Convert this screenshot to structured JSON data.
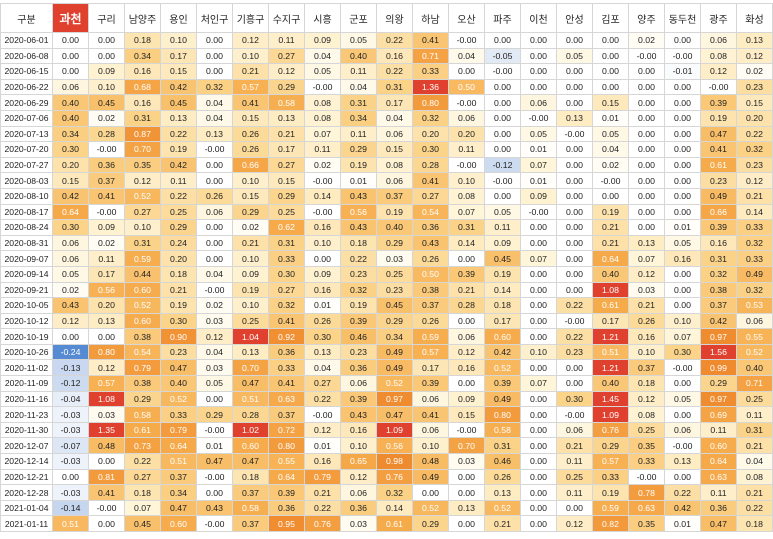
{
  "table": {
    "highlighted_column_index": 0
  },
  "colors": {
    "header_highlight": "#E0412F",
    "zero": "#FFFFFF",
    "low": "#FFF3D4",
    "mid": "#FBD48A",
    "upper": "#F6AC4C",
    "high": "#EF8A2E",
    "max": "#E0412F",
    "neg_light": "#E2EAF6",
    "neg_mid": "#C3D4EE",
    "neg_strong": "#4A82D0",
    "grid": "#D6D6D6"
  },
  "chart_data": {
    "type": "heatmap",
    "row_header_label": "구분",
    "columns": [
      "과천",
      "구리",
      "남양주",
      "용인",
      "처인구",
      "기흥구",
      "수지구",
      "시흥",
      "군포",
      "의왕",
      "하남",
      "오산",
      "파주",
      "이천",
      "안성",
      "김포",
      "양주",
      "동두천",
      "광주",
      "화성"
    ],
    "rows": [
      {
        "date": "2020-06-01",
        "values": [
          "0.00",
          "0.00",
          "0.18",
          "0.10",
          "0.00",
          "0.12",
          "0.11",
          "0.09",
          "0.05",
          "0.22",
          "0.41",
          "-0.00",
          "0.00",
          "0.00",
          "0.00",
          "0.00",
          "0.02",
          "0.00",
          "0.06",
          "0.13"
        ]
      },
      {
        "date": "2020-06-08",
        "values": [
          "0.00",
          "0.00",
          "0.34",
          "0.17",
          "0.00",
          "0.10",
          "0.27",
          "0.04",
          "0.40",
          "0.16",
          "0.71",
          "0.04",
          "-0.05",
          "0.00",
          "0.05",
          "0.00",
          "-0.00",
          "-0.00",
          "0.08",
          "0.12"
        ]
      },
      {
        "date": "2020-06-15",
        "values": [
          "0.00",
          "0.09",
          "0.16",
          "0.15",
          "0.00",
          "0.21",
          "0.12",
          "0.05",
          "0.11",
          "0.22",
          "0.33",
          "0.00",
          "-0.00",
          "0.00",
          "0.00",
          "0.00",
          "0.00",
          "-0.01",
          "0.12",
          "0.02"
        ]
      },
      {
        "date": "2020-06-22",
        "values": [
          "0.06",
          "0.10",
          "0.68",
          "0.42",
          "0.32",
          "0.57",
          "0.29",
          "-0.00",
          "0.04",
          "0.31",
          "1.36",
          "0.50",
          "0.00",
          "0.00",
          "0.00",
          "0.00",
          "0.00",
          "0.00",
          "-0.00",
          "0.23"
        ]
      },
      {
        "date": "2020-06-29",
        "values": [
          "0.40",
          "0.45",
          "0.16",
          "0.45",
          "0.04",
          "0.41",
          "0.58",
          "0.08",
          "0.31",
          "0.17",
          "0.80",
          "-0.00",
          "0.00",
          "0.06",
          "0.00",
          "0.15",
          "0.00",
          "0.00",
          "0.39",
          "0.15"
        ]
      },
      {
        "date": "2020-07-06",
        "values": [
          "0.40",
          "0.02",
          "0.31",
          "0.13",
          "0.04",
          "0.15",
          "0.13",
          "0.08",
          "0.34",
          "0.04",
          "0.32",
          "0.06",
          "0.00",
          "-0.00",
          "0.13",
          "0.01",
          "0.00",
          "0.00",
          "0.19",
          "0.20"
        ]
      },
      {
        "date": "2020-07-13",
        "values": [
          "0.34",
          "0.28",
          "0.87",
          "0.22",
          "0.13",
          "0.26",
          "0.21",
          "0.07",
          "0.11",
          "0.06",
          "0.20",
          "0.20",
          "0.00",
          "0.05",
          "-0.00",
          "0.05",
          "0.00",
          "0.00",
          "0.47",
          "0.22"
        ]
      },
      {
        "date": "2020-07-20",
        "values": [
          "0.30",
          "-0.00",
          "0.70",
          "0.19",
          "-0.00",
          "0.26",
          "0.17",
          "0.11",
          "0.29",
          "0.15",
          "0.30",
          "0.11",
          "0.00",
          "0.01",
          "0.00",
          "0.04",
          "0.00",
          "0.00",
          "0.41",
          "0.32"
        ]
      },
      {
        "date": "2020-07-27",
        "values": [
          "0.20",
          "0.36",
          "0.35",
          "0.42",
          "0.00",
          "0.66",
          "0.27",
          "0.02",
          "0.19",
          "0.08",
          "0.28",
          "-0.00",
          "-0.12",
          "0.07",
          "0.00",
          "0.02",
          "0.00",
          "0.00",
          "0.61",
          "0.23"
        ]
      },
      {
        "date": "2020-08-03",
        "values": [
          "0.15",
          "0.37",
          "0.12",
          "0.11",
          "0.00",
          "0.10",
          "0.15",
          "-0.00",
          "0.01",
          "0.06",
          "0.41",
          "0.10",
          "-0.00",
          "0.01",
          "0.00",
          "-0.00",
          "0.00",
          "0.00",
          "0.23",
          "0.12"
        ]
      },
      {
        "date": "2020-08-10",
        "values": [
          "0.42",
          "0.41",
          "0.52",
          "0.22",
          "0.26",
          "0.15",
          "0.29",
          "0.14",
          "0.43",
          "0.37",
          "0.27",
          "0.08",
          "0.00",
          "0.09",
          "0.00",
          "0.00",
          "0.00",
          "0.00",
          "0.49",
          "0.21"
        ]
      },
      {
        "date": "2020-08-17",
        "values": [
          "0.64",
          "-0.00",
          "0.27",
          "0.25",
          "0.06",
          "0.29",
          "0.25",
          "-0.00",
          "0.56",
          "0.19",
          "0.54",
          "0.07",
          "0.05",
          "-0.00",
          "0.00",
          "0.19",
          "0.00",
          "0.00",
          "0.66",
          "0.14"
        ]
      },
      {
        "date": "2020-08-24",
        "values": [
          "0.30",
          "0.09",
          "0.10",
          "0.29",
          "0.00",
          "0.02",
          "0.62",
          "0.16",
          "0.43",
          "0.40",
          "0.36",
          "0.31",
          "0.11",
          "0.00",
          "0.00",
          "0.21",
          "0.00",
          "0.01",
          "0.39",
          "0.33"
        ]
      },
      {
        "date": "2020-08-31",
        "values": [
          "0.06",
          "0.02",
          "0.31",
          "0.24",
          "0.00",
          "0.21",
          "0.31",
          "0.10",
          "0.18",
          "0.29",
          "0.43",
          "0.14",
          "0.09",
          "0.00",
          "0.00",
          "0.21",
          "0.13",
          "0.05",
          "0.16",
          "0.32"
        ]
      },
      {
        "date": "2020-09-07",
        "values": [
          "0.06",
          "0.11",
          "0.59",
          "0.20",
          "0.00",
          "0.10",
          "0.33",
          "0.00",
          "0.22",
          "0.03",
          "0.26",
          "0.00",
          "0.45",
          "0.07",
          "0.00",
          "0.64",
          "0.07",
          "0.16",
          "0.31",
          "0.33"
        ]
      },
      {
        "date": "2020-09-14",
        "values": [
          "0.05",
          "0.17",
          "0.44",
          "0.18",
          "0.04",
          "0.09",
          "0.30",
          "0.09",
          "0.23",
          "0.25",
          "0.50",
          "0.39",
          "0.19",
          "0.00",
          "0.00",
          "0.40",
          "0.12",
          "0.00",
          "0.32",
          "0.49"
        ]
      },
      {
        "date": "2020-09-21",
        "values": [
          "0.02",
          "0.56",
          "0.60",
          "0.21",
          "-0.00",
          "0.19",
          "0.27",
          "0.16",
          "0.32",
          "0.23",
          "0.38",
          "0.21",
          "0.14",
          "0.00",
          "0.00",
          "1.08",
          "0.03",
          "0.00",
          "0.38",
          "0.32"
        ]
      },
      {
        "date": "2020-10-05",
        "values": [
          "0.43",
          "0.20",
          "0.52",
          "0.19",
          "0.02",
          "0.10",
          "0.32",
          "0.01",
          "0.19",
          "0.45",
          "0.37",
          "0.28",
          "0.18",
          "0.00",
          "0.22",
          "0.61",
          "0.21",
          "0.00",
          "0.37",
          "0.53"
        ]
      },
      {
        "date": "2020-10-12",
        "values": [
          "0.12",
          "0.13",
          "0.60",
          "0.30",
          "0.03",
          "0.25",
          "0.41",
          "0.26",
          "0.39",
          "0.29",
          "0.26",
          "0.00",
          "0.17",
          "0.00",
          "-0.00",
          "0.17",
          "0.26",
          "0.10",
          "0.42",
          "0.06"
        ]
      },
      {
        "date": "2020-10-19",
        "values": [
          "0.00",
          "0.00",
          "0.38",
          "0.90",
          "0.12",
          "1.04",
          "0.92",
          "0.30",
          "0.46",
          "0.34",
          "0.59",
          "0.06",
          "0.60",
          "0.00",
          "0.22",
          "1.21",
          "0.16",
          "0.07",
          "0.97",
          "0.55"
        ]
      },
      {
        "date": "2020-10-26",
        "values": [
          "-0.24",
          "0.80",
          "0.54",
          "0.23",
          "0.04",
          "0.13",
          "0.36",
          "0.13",
          "0.23",
          "0.49",
          "0.57",
          "0.12",
          "0.42",
          "0.10",
          "0.23",
          "0.51",
          "0.10",
          "0.30",
          "1.56",
          "0.52"
        ]
      },
      {
        "date": "2020-11-02",
        "values": [
          "-0.13",
          "0.12",
          "0.79",
          "0.47",
          "0.03",
          "0.70",
          "0.33",
          "0.04",
          "0.36",
          "0.49",
          "0.17",
          "0.16",
          "0.52",
          "0.00",
          "0.00",
          "1.21",
          "0.37",
          "-0.00",
          "0.99",
          "0.40"
        ]
      },
      {
        "date": "2020-11-09",
        "values": [
          "-0.12",
          "0.57",
          "0.38",
          "0.40",
          "0.05",
          "0.47",
          "0.41",
          "0.27",
          "0.06",
          "0.52",
          "0.39",
          "0.00",
          "0.39",
          "0.07",
          "0.00",
          "0.40",
          "0.18",
          "0.00",
          "0.29",
          "0.71"
        ]
      },
      {
        "date": "2020-11-16",
        "values": [
          "-0.04",
          "1.08",
          "0.29",
          "0.52",
          "0.00",
          "0.51",
          "0.63",
          "0.22",
          "0.39",
          "0.97",
          "0.06",
          "0.09",
          "0.49",
          "0.00",
          "0.30",
          "1.45",
          "0.12",
          "0.05",
          "0.97",
          "0.25"
        ]
      },
      {
        "date": "2020-11-23",
        "values": [
          "-0.03",
          "0.03",
          "0.58",
          "0.33",
          "0.29",
          "0.28",
          "0.37",
          "-0.00",
          "0.43",
          "0.47",
          "0.41",
          "0.15",
          "0.80",
          "0.00",
          "-0.00",
          "1.09",
          "0.08",
          "0.00",
          "0.69",
          "0.11"
        ]
      },
      {
        "date": "2020-11-30",
        "values": [
          "-0.03",
          "1.35",
          "0.61",
          "0.79",
          "-0.00",
          "1.02",
          "0.72",
          "0.12",
          "0.16",
          "1.09",
          "0.06",
          "-0.00",
          "0.58",
          "0.00",
          "0.06",
          "0.76",
          "0.25",
          "0.06",
          "0.11",
          "0.31"
        ]
      },
      {
        "date": "2020-12-07",
        "values": [
          "-0.07",
          "0.48",
          "0.73",
          "0.64",
          "0.01",
          "0.60",
          "0.80",
          "0.01",
          "0.10",
          "0.56",
          "0.10",
          "0.70",
          "0.31",
          "0.00",
          "0.21",
          "0.29",
          "0.35",
          "-0.00",
          "0.60",
          "0.21"
        ]
      },
      {
        "date": "2020-12-14",
        "values": [
          "-0.03",
          "0.00",
          "0.22",
          "0.51",
          "0.47",
          "0.47",
          "0.55",
          "0.16",
          "0.65",
          "0.98",
          "0.48",
          "0.03",
          "0.46",
          "0.00",
          "0.11",
          "0.57",
          "0.33",
          "0.13",
          "0.64",
          "0.04"
        ]
      },
      {
        "date": "2020-12-21",
        "values": [
          "0.00",
          "0.81",
          "0.27",
          "0.37",
          "-0.00",
          "0.18",
          "0.64",
          "0.79",
          "0.12",
          "0.76",
          "0.49",
          "0.00",
          "0.26",
          "0.00",
          "0.25",
          "0.33",
          "-0.00",
          "0.00",
          "0.63",
          "0.08"
        ]
      },
      {
        "date": "2020-12-28",
        "values": [
          "-0.03",
          "0.41",
          "0.18",
          "0.34",
          "0.00",
          "0.37",
          "0.39",
          "0.21",
          "0.06",
          "0.32",
          "0.00",
          "0.00",
          "0.13",
          "0.00",
          "0.11",
          "0.19",
          "0.78",
          "0.22",
          "0.11",
          "0.21"
        ]
      },
      {
        "date": "2021-01-04",
        "values": [
          "-0.14",
          "-0.00",
          "0.07",
          "0.47",
          "0.43",
          "0.58",
          "0.36",
          "0.22",
          "0.36",
          "0.14",
          "0.52",
          "0.13",
          "0.52",
          "0.00",
          "0.00",
          "0.59",
          "0.63",
          "0.42",
          "0.36",
          "0.22"
        ]
      },
      {
        "date": "2021-01-11",
        "values": [
          "0.51",
          "0.00",
          "0.45",
          "0.60",
          "-0.00",
          "0.37",
          "0.95",
          "0.76",
          "0.03",
          "0.61",
          "0.29",
          "0.00",
          "0.21",
          "0.00",
          "0.12",
          "0.82",
          "0.35",
          "0.01",
          "0.47",
          "0.18"
        ]
      }
    ]
  }
}
